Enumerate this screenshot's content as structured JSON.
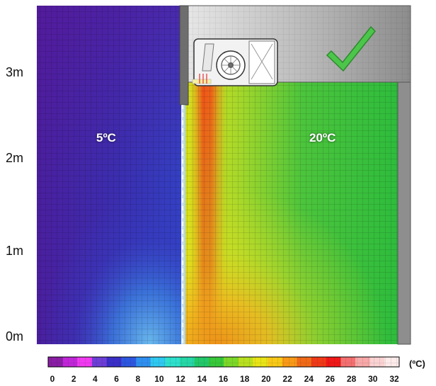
{
  "y_axis_labels": [
    "3m",
    "2m",
    "1m",
    "0m"
  ],
  "zones": {
    "outside": "5ºC",
    "inside": "20ºC"
  },
  "scale": {
    "ticks": [
      "0",
      "2",
      "4",
      "6",
      "8",
      "10",
      "12",
      "14",
      "16",
      "18",
      "20",
      "22",
      "24",
      "26",
      "28",
      "30",
      "32"
    ],
    "unit": "(ºC)",
    "colors": [
      "#8a1ea5",
      "#c026d8",
      "#f03bf0",
      "#6d3fd6",
      "#3b2fc8",
      "#2e57e0",
      "#2f8ff0",
      "#30c8f0",
      "#2ee0cc",
      "#26d7a6",
      "#22c86a",
      "#38c83a",
      "#7cd82a",
      "#b8e020",
      "#e8e418",
      "#f8c818",
      "#f89a18",
      "#f06a18",
      "#f03a18",
      "#f01818",
      "#f47070",
      "#f7a8a8",
      "#fad2d2",
      "#fdeaea"
    ]
  },
  "check_color": "#4cc64a",
  "icons": [
    "fan-coil-unit-icon",
    "checkmark-icon"
  ]
}
